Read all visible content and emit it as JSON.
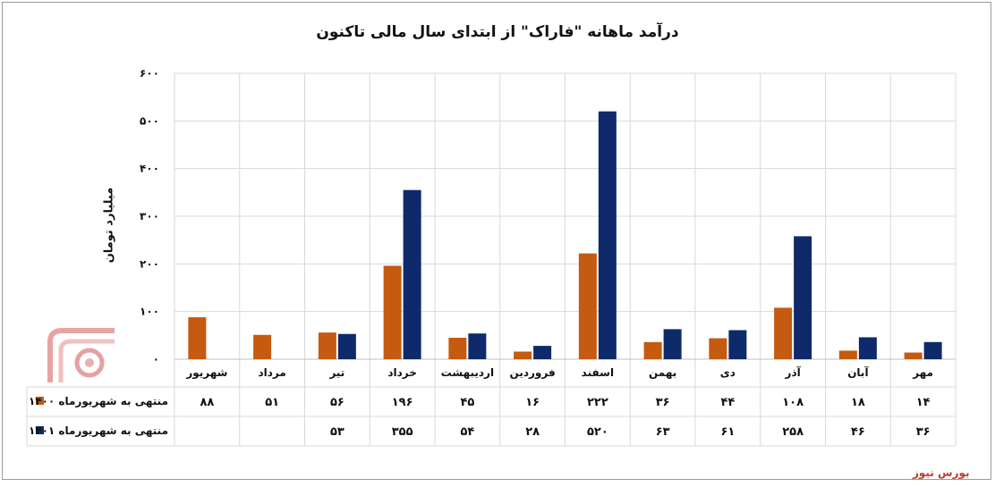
{
  "chart_data": {
    "type": "bar",
    "title": "درآمد ماهانه \"فاراک\" از ابتدای سال مالی تاکنون",
    "ylabel": "میلیارد تومان",
    "ylim": [
      0,
      600
    ],
    "yticks": [
      0,
      100,
      200,
      300,
      400,
      500,
      600
    ],
    "ytick_labels": [
      "۰",
      "۱۰۰",
      "۲۰۰",
      "۳۰۰",
      "۴۰۰",
      "۵۰۰",
      "۶۰۰"
    ],
    "grid": true,
    "legend": "bottom-table",
    "categories": [
      "شهریور",
      "مرداد",
      "تیر",
      "خرداد",
      "اردیبهشت",
      "فروردین",
      "اسفند",
      "بهمن",
      "دی",
      "آذر",
      "آبان",
      "مهر"
    ],
    "series": [
      {
        "name": "منتهی به شهریورماه ۱۴۰۰",
        "color": "#c55a11",
        "values": [
          88,
          51,
          56,
          196,
          45,
          16,
          222,
          36,
          44,
          108,
          18,
          14
        ],
        "labels": [
          "۸۸",
          "۵۱",
          "۵۶",
          "۱۹۶",
          "۴۵",
          "۱۶",
          "۲۲۲",
          "۳۶",
          "۴۴",
          "۱۰۸",
          "۱۸",
          "۱۴"
        ]
      },
      {
        "name": "منتهی به شهریورماه ۱۴۰۱",
        "color": "#0e2a6b",
        "values": [
          null,
          null,
          53,
          355,
          54,
          28,
          520,
          63,
          61,
          258,
          46,
          36
        ],
        "labels": [
          "",
          "",
          "۵۳",
          "۳۵۵",
          "۵۴",
          "۲۸",
          "۵۲۰",
          "۶۳",
          "۶۱",
          "۲۵۸",
          "۴۶",
          "۳۶"
        ]
      }
    ]
  },
  "source": "بورس نیوز"
}
